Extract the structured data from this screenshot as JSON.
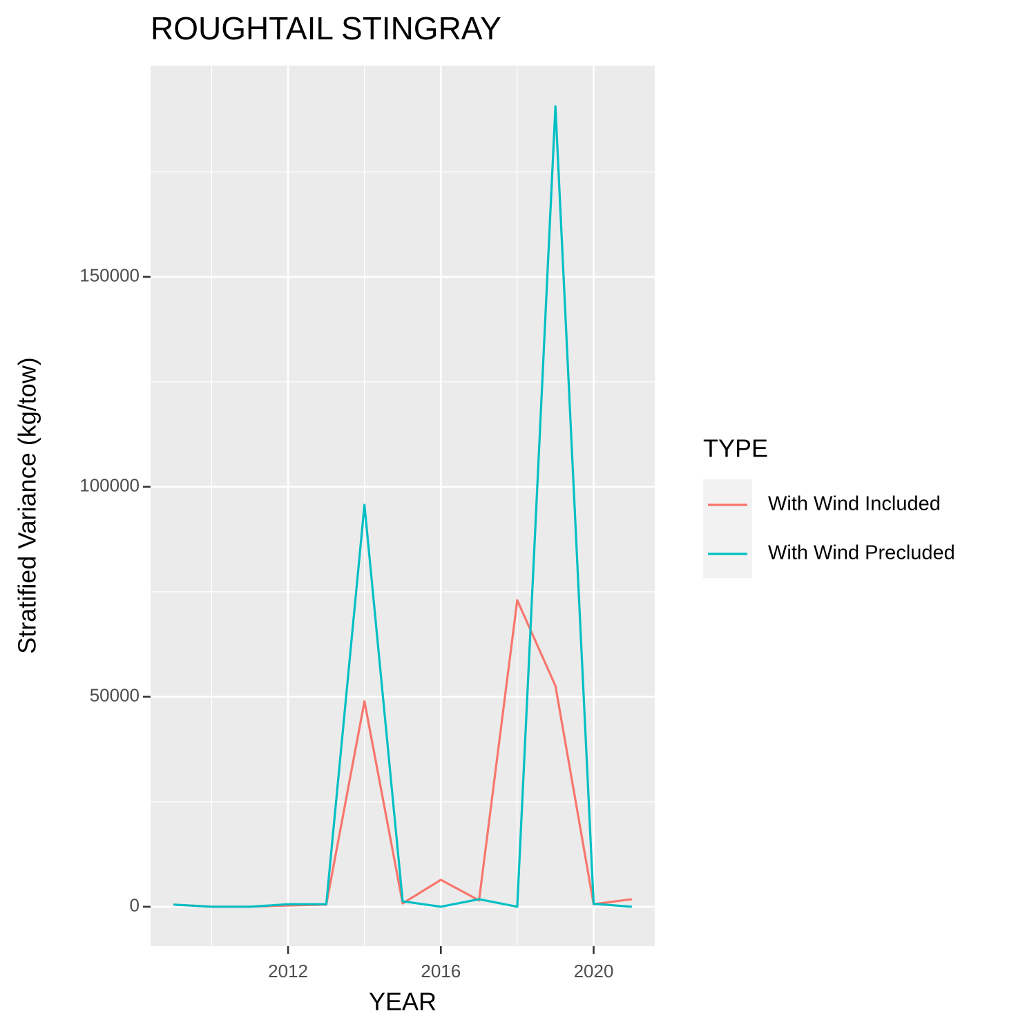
{
  "chart_data": {
    "type": "line",
    "title": "ROUGHTAIL STINGRAY",
    "x_label": "YEAR",
    "y_label": "Stratified Variance (kg/tow)",
    "x": [
      2009,
      2010,
      2011,
      2012,
      2013,
      2014,
      2015,
      2016,
      2017,
      2018,
      2019,
      2020,
      2021
    ],
    "series": [
      {
        "name": "With Wind Included",
        "color": "#f8766d",
        "values": [
          500,
          0,
          0,
          300,
          500,
          48900,
          800,
          6400,
          1500,
          73000,
          52600,
          600,
          1800
        ]
      },
      {
        "name": "With Wind Precluded",
        "color": "#00bfc4",
        "values": [
          500,
          0,
          0,
          600,
          600,
          95700,
          1300,
          0,
          1800,
          0,
          190600,
          700,
          0
        ]
      }
    ],
    "xlim": [
      2008.4,
      2021.6
    ],
    "ylim": [
      -9400,
      200300
    ],
    "xticks": [
      2012,
      2016,
      2020
    ],
    "yticks": [
      0,
      50000,
      100000,
      150000
    ],
    "xminor": [
      2010,
      2014,
      2018
    ],
    "yminor": [
      25000,
      75000,
      125000,
      175000
    ],
    "grid": true,
    "legend_title": "TYPE",
    "legend_position": "right"
  }
}
